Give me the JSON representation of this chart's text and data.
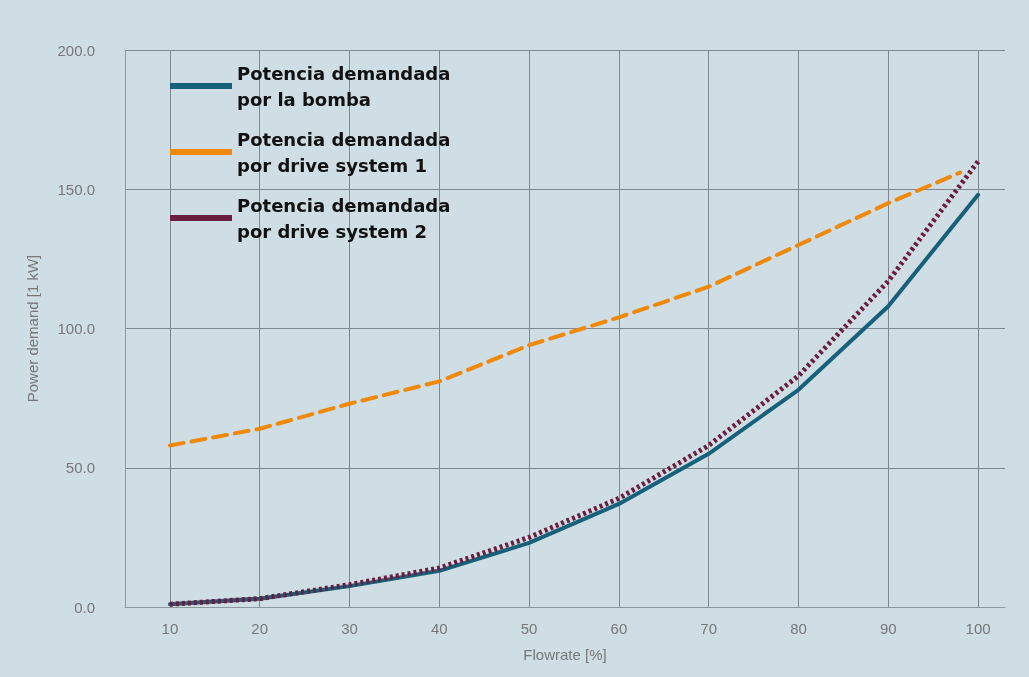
{
  "chart_data": {
    "type": "line",
    "xlabel": "Flowrate [%]",
    "ylabel": "Power demand [1 kW]",
    "x": [
      10,
      20,
      30,
      40,
      50,
      60,
      70,
      80,
      90,
      100
    ],
    "series": [
      {
        "name": "Potencia demandada por la bomba",
        "color": "#17607a",
        "line_style": "solid",
        "values": [
          1,
          3,
          7.5,
          13,
          23,
          37,
          55,
          78,
          108,
          148
        ]
      },
      {
        "name": "Potencia demandada por drive system 1",
        "color": "#f0890a",
        "line_style": "dashed",
        "x": [
          10,
          20,
          30,
          40,
          50,
          60,
          70,
          80,
          90,
          98
        ],
        "values": [
          58,
          64,
          73,
          81,
          94,
          104,
          115,
          130,
          145,
          156
        ]
      },
      {
        "name": "Potencia demandada por drive system 2",
        "color": "#6a1d3e",
        "line_style": "dotted",
        "values": [
          1,
          3,
          8,
          14,
          25,
          39,
          58,
          83,
          117,
          160
        ]
      }
    ],
    "xlim": [
      5,
      103
    ],
    "xticks": [
      10,
      20,
      30,
      40,
      50,
      60,
      70,
      80,
      90,
      100
    ],
    "ylim": [
      0,
      200
    ],
    "yticks": [
      {
        "value": 0,
        "label": "0.0"
      },
      {
        "value": 50,
        "label": "50.0"
      },
      {
        "value": 100,
        "label": "100.0"
      },
      {
        "value": 150,
        "label": "150.0"
      },
      {
        "value": 200,
        "label": "200.0"
      }
    ],
    "grid": true,
    "legend": "top left",
    "marker": "none"
  }
}
